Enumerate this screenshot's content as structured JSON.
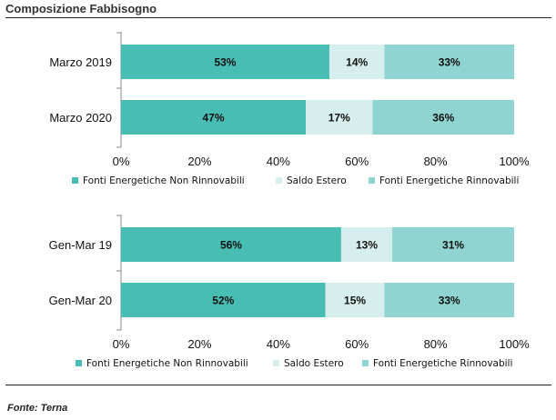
{
  "title": "Composizione Fabbisogno",
  "source": "Fonte: Terna",
  "colors": {
    "non_rinnovabili": "#48bdb4",
    "saldo_estero": "#d6eeee",
    "rinnovabili": "#8fd4d0"
  },
  "chart_data": [
    {
      "type": "bar",
      "orientation": "horizontal",
      "stacked": true,
      "categories": [
        "Marzo 2019",
        "Marzo 2020"
      ],
      "series": [
        {
          "name": "Fonti Energetiche Non Rinnovabili",
          "values": [
            53,
            47
          ],
          "labels": [
            "53%",
            "47%"
          ]
        },
        {
          "name": "Saldo Estero",
          "values": [
            14,
            17
          ],
          "labels": [
            "14%",
            "17%"
          ]
        },
        {
          "name": "Fonti Energetiche Rinnovabili",
          "values": [
            33,
            36
          ],
          "labels": [
            "33%",
            "36%"
          ]
        }
      ],
      "xlim": [
        0,
        100
      ],
      "xticks": [
        "0%",
        "20%",
        "40%",
        "60%",
        "80%",
        "100%"
      ],
      "legend": "bottom",
      "grid": false
    },
    {
      "type": "bar",
      "orientation": "horizontal",
      "stacked": true,
      "categories": [
        "Gen-Mar 19",
        "Gen-Mar 20"
      ],
      "series": [
        {
          "name": "Fonti Energetiche Non Rinnovabili",
          "values": [
            56,
            52
          ],
          "labels": [
            "56%",
            "52%"
          ]
        },
        {
          "name": "Saldo Estero",
          "values": [
            13,
            15
          ],
          "labels": [
            "13%",
            "15%"
          ]
        },
        {
          "name": "Fonti Energetiche Rinnovabili",
          "values": [
            31,
            33
          ],
          "labels": [
            "31%",
            "33%"
          ]
        }
      ],
      "xlim": [
        0,
        100
      ],
      "xticks": [
        "0%",
        "20%",
        "40%",
        "60%",
        "80%",
        "100%"
      ],
      "legend": "bottom",
      "grid": false
    }
  ]
}
